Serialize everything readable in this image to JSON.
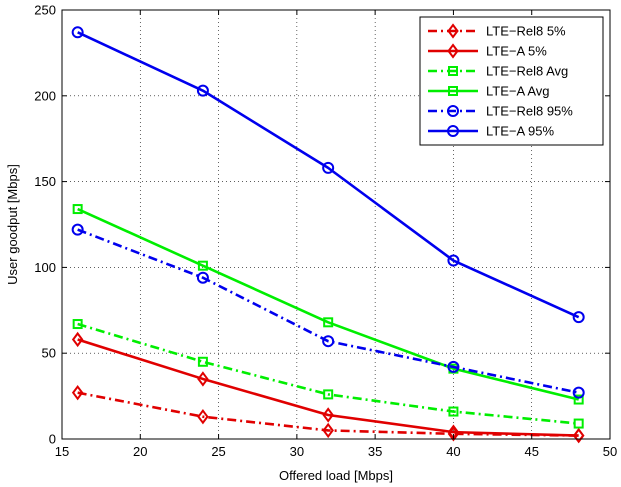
{
  "chart_data": {
    "type": "line",
    "xlabel": "Offered load [Mbps]",
    "ylabel": "User goodput [Mbps]",
    "xlim": [
      15,
      50
    ],
    "ylim": [
      0,
      250
    ],
    "grid": true,
    "legend_placement": "top-right",
    "x": [
      16,
      24,
      32,
      40,
      48
    ],
    "x_ticks": [
      15,
      20,
      25,
      30,
      35,
      40,
      45,
      50
    ],
    "y_ticks": [
      0,
      50,
      100,
      150,
      200,
      250
    ],
    "series": [
      {
        "name": "LTE−Rel8 5%",
        "color": "#e00000",
        "dash": "dashdot",
        "marker": "diamond",
        "values": [
          27,
          13,
          5,
          3,
          2
        ]
      },
      {
        "name": "LTE−A 5%",
        "color": "#e00000",
        "dash": "solid",
        "marker": "diamond",
        "values": [
          58,
          35,
          14,
          4,
          2
        ]
      },
      {
        "name": "LTE−Rel8 Avg",
        "color": "#00ee00",
        "dash": "dashdot",
        "marker": "square",
        "values": [
          67,
          45,
          26,
          16,
          9
        ]
      },
      {
        "name": "LTE−A Avg",
        "color": "#00ee00",
        "dash": "solid",
        "marker": "square",
        "values": [
          134,
          101,
          68,
          41,
          23
        ]
      },
      {
        "name": "LTE−Rel8 95%",
        "color": "#0000ee",
        "dash": "dashdot",
        "marker": "circle",
        "values": [
          122,
          94,
          57,
          42,
          27
        ]
      },
      {
        "name": "LTE−A 95%",
        "color": "#0000ee",
        "dash": "solid",
        "marker": "circle",
        "values": [
          237,
          203,
          158,
          104,
          71
        ]
      }
    ]
  }
}
